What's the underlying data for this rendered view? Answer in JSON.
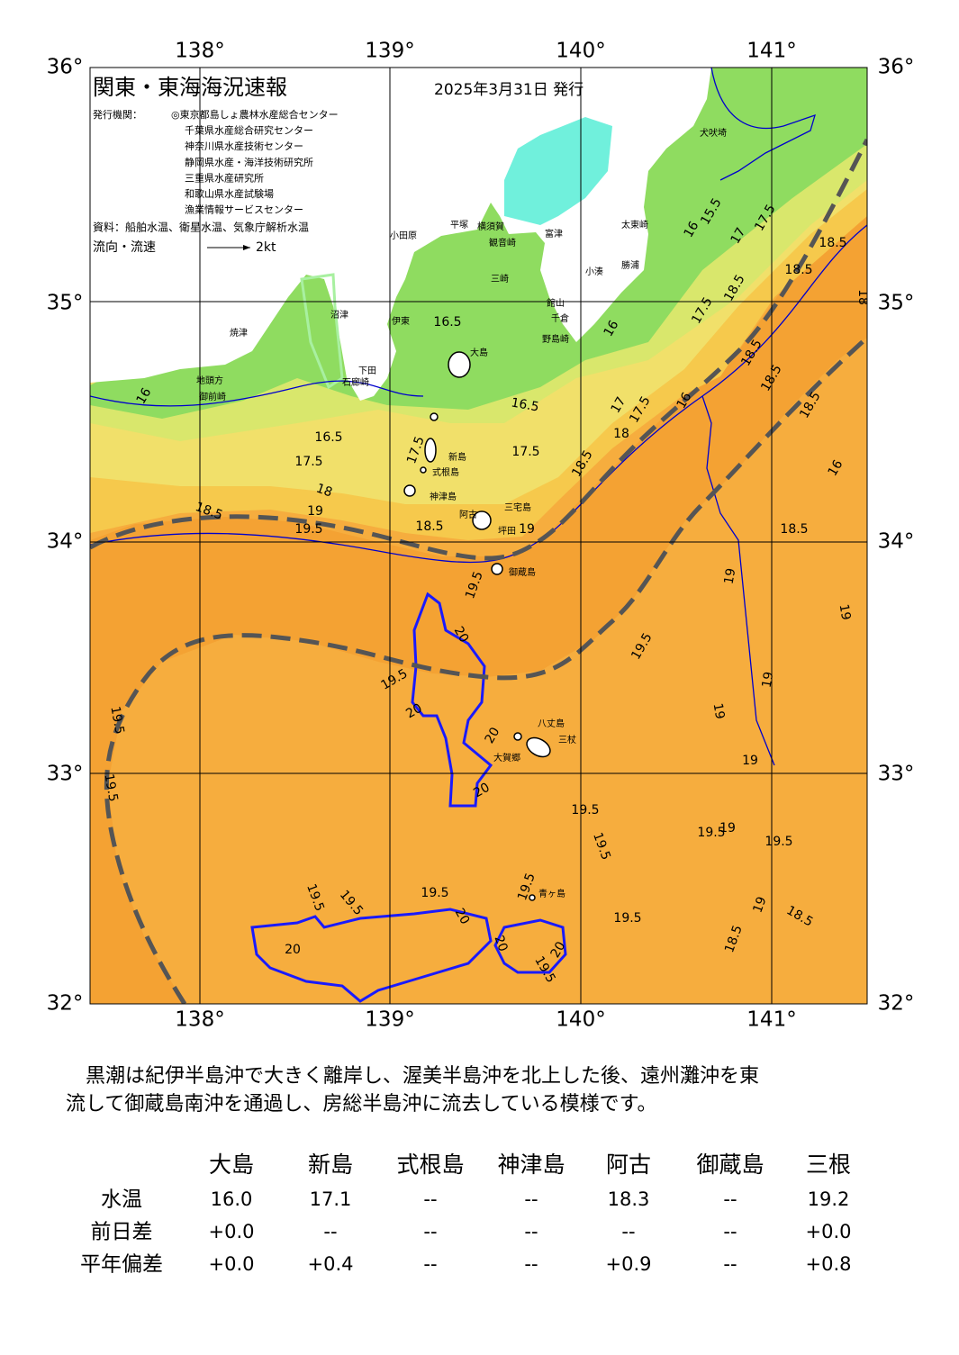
{
  "header": {
    "title": "関東・東海海況速報",
    "date": "2025年3月31日 発行"
  },
  "issuers": {
    "label": "発行機関：",
    "list": [
      "◎東京都島しょ農林水産総合センター",
      "千葉県水産総合研究センター",
      "神奈川県水産技術センター",
      "静岡県水産・海洋技術研究所",
      "三重県水産研究所",
      "和歌山県水産試験場",
      "漁業情報サービスセンター"
    ]
  },
  "source": "資料：船舶水温、衛星水温、気象庁解析水温",
  "legend": {
    "label": "流向・流速",
    "speed": "2kt"
  },
  "map": {
    "lon_labels": [
      "138°",
      "139°",
      "140°",
      "141°"
    ],
    "lat_labels": [
      "36°",
      "35°",
      "34°",
      "33°",
      "32°"
    ],
    "places": [
      "犬吠埼",
      "太東崎",
      "勝浦",
      "小湊",
      "館山",
      "千倉",
      "野島崎",
      "富津",
      "平塚",
      "横須賀",
      "観音崎",
      "三崎",
      "小田原",
      "沼津",
      "伊東",
      "下田",
      "石廊崎",
      "焼津",
      "地頭方",
      "御前崎",
      "大島",
      "新島",
      "式根島",
      "神津島",
      "三宅島",
      "阿古",
      "坪田",
      "御蔵島",
      "八丈島",
      "三杖",
      "大賀郷",
      "青ヶ島"
    ],
    "contour_labels": [
      "16.5",
      "16",
      "16.5",
      "17.5",
      "18",
      "18.5",
      "19",
      "19.5",
      "16.5",
      "17.5",
      "18.5",
      "19",
      "17.5",
      "18.5",
      "17",
      "17.5",
      "18",
      "16",
      "17.5",
      "18.5",
      "17",
      "17.5",
      "18.5",
      "18.5",
      "18",
      "18.5",
      "18.5",
      "18.5",
      "16",
      "18.5",
      "16",
      "15.5",
      "16",
      "19.5",
      "20",
      "19.5",
      "20",
      "20",
      "20",
      "19.5",
      "19",
      "19",
      "19",
      "19",
      "19",
      "19.5",
      "19.5",
      "19.5",
      "19.5",
      "19.5",
      "19",
      "19.5",
      "19.5",
      "19.5",
      "19.5",
      "20",
      "19.5",
      "19.5",
      "19",
      "18.5",
      "18.5",
      "20",
      "20",
      "20",
      "19.5"
    ]
  },
  "summary": [
    "黒潮は紀伊半島沖で大きく離岸し、渥美半島沖を北上した後、遠州灘沖を東",
    "流して御蔵島南沖を通過し、房総半島沖に流去している模様です。"
  ],
  "table": {
    "columns": [
      "大島",
      "新島",
      "式根島",
      "神津島",
      "阿古",
      "御蔵島",
      "三根"
    ],
    "rows": [
      {
        "label": "水温",
        "values": [
          "16.0",
          "17.1",
          "--",
          "--",
          "18.3",
          "--",
          "19.2"
        ]
      },
      {
        "label": "前日差",
        "values": [
          "+0.0",
          "--",
          "--",
          "--",
          "--",
          "--",
          "+0.0"
        ]
      },
      {
        "label": "平年偏差",
        "values": [
          "+0.0",
          "+0.4",
          "--",
          "--",
          "+0.9",
          "--",
          "+0.8"
        ]
      }
    ]
  }
}
